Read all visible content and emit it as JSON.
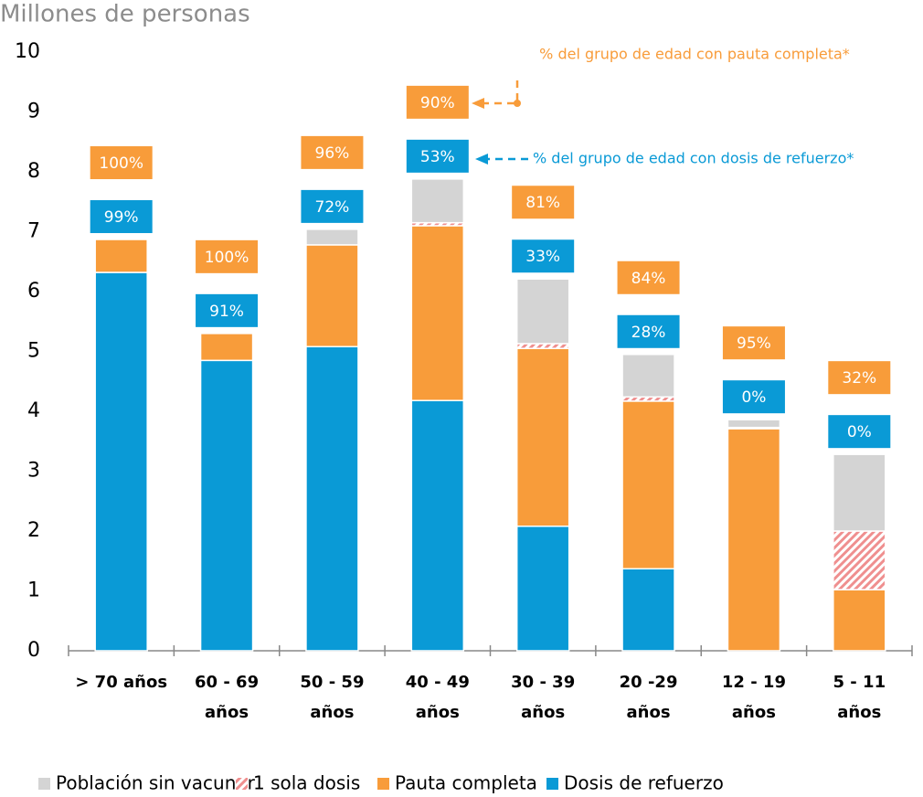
{
  "chart_data": {
    "type": "stacked-bar",
    "title": "Millones de personas",
    "categories": [
      [
        "> 70 años"
      ],
      [
        "60 - 69",
        "años"
      ],
      [
        "50 - 59",
        "años"
      ],
      [
        "40 - 49",
        "años"
      ],
      [
        "30 - 39",
        "años"
      ],
      [
        "20 -29",
        "años"
      ],
      [
        "12 - 19",
        "años"
      ],
      [
        "5 - 11",
        "años"
      ]
    ],
    "series": [
      {
        "name": "Población sin vacunar",
        "color": "#d4d4d4",
        "values": [
          0,
          0,
          0.26,
          0.73,
          1.08,
          0.71,
          0.13,
          1.28
        ]
      },
      {
        "name": "1 sola dosis",
        "color": "#ef8f8f",
        "hatch": true,
        "values": [
          0,
          0,
          0,
          0.05,
          0.08,
          0.07,
          0.02,
          0.98
        ]
      },
      {
        "name": "Pauta completa",
        "color": "#f89c3a",
        "values": [
          0.55,
          0.45,
          1.7,
          2.92,
          2.97,
          2.8,
          3.71,
          1.02
        ]
      },
      {
        "name": "Dosis de refuerzo",
        "color": "#0a9ad6",
        "values": [
          6.32,
          4.85,
          5.08,
          4.18,
          2.08,
          1.37,
          0,
          0
        ]
      }
    ],
    "pauta_labels": [
      "100%",
      "100%",
      "96%",
      "90%",
      "81%",
      "84%",
      "95%",
      "32%"
    ],
    "refuerzo_labels": [
      "99%",
      "91%",
      "72%",
      "53%",
      "33%",
      "28%",
      "0%",
      "0%"
    ],
    "annotation_pauta": "% del grupo de edad con pauta completa*",
    "annotation_refuerzo": "% del grupo de edad con dosis de refuerzo*",
    "ylim": [
      0,
      10
    ],
    "yticks": [
      0,
      1,
      2,
      3,
      4,
      5,
      6,
      7,
      8,
      9,
      10
    ],
    "grid": false,
    "legend": "bottom"
  }
}
